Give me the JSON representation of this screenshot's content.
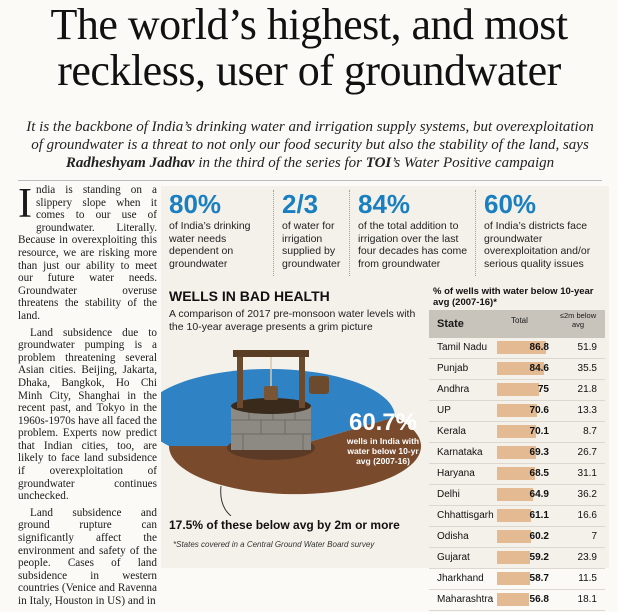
{
  "headline": {
    "line1": "The world’s highest, and most",
    "line2": "reckless, user of groundwater"
  },
  "deck": {
    "part1": "It is the backbone of India’s drinking water and irrigation supply systems, but overexploitation of groundwater is a threat to not only our food security but also the stability of the land, says",
    "author": "Radheshyam Jadhav",
    "part2": "in the third of the series for",
    "paper": "TOI",
    "part3": "’s Water Positive campaign"
  },
  "article": {
    "dropcap": "I",
    "p1": "ndia is standing on a slippery slope when it comes to our use of groundwater. Literally. Because in overexploiting this resource, we are risking more than just our ability to meet our future water needs. Groundwater overuse threatens the stability of the land.",
    "p2": "Land subsidence due to groundwater pumping is a problem threatening several Asian cities. Beijing, Jakarta, Dhaka, Bangkok, Ho Chi Minh City, Shanghai in the recent past, and Tokyo in the 1960s-1970s have all faced the problem. Experts now predict that Indian cities, too, are likely to face land subsidence if overexploitation of groundwater continues unchecked.",
    "p3": "Land subsidence and ground rupture can significantly affect the environment and safety of the people. Cases of land subsidence in western countries (Venice and Ravenna in Italy, Houston in US) and in"
  },
  "stats": [
    {
      "big": "80%",
      "small": "of India’s drinking water needs dependent on groundwater"
    },
    {
      "big": "2/3",
      "small": "of water for irrigation supplied by groundwater"
    },
    {
      "big": "84%",
      "small": "of the total addition to irrigation over the last four decades has come from groundwater"
    },
    {
      "big": "60%",
      "small": "of India’s districts face groundwater overexploitation and/or serious quality issues"
    }
  ],
  "wells": {
    "title": "WELLS IN BAD HEALTH",
    "subtitle": "A comparison of 2017 pre-monsoon water levels with the 10-year average presents a grim picture",
    "pie_pct": "60.7%",
    "pie_text": "wells in India with water below 10-yr avg (2007-16)",
    "below_note": "17.5% of these below avg by 2m or more",
    "footnote": "*States covered in a Central Ground Water Board survey"
  },
  "colors": {
    "accent_blue": "#1a7fc1",
    "pie_brown": "#7a4a2c",
    "pie_blue": "#2f83c5",
    "bar_fill": "#e3ba91"
  },
  "table": {
    "title": "% of wells with water below 10-year avg (2007-16)*",
    "col_state": "State",
    "col_total": "Total",
    "col_below": "≤2m below avg",
    "rows": [
      {
        "state": "Tamil Nadu",
        "total": "86.8",
        "below": "51.9"
      },
      {
        "state": "Punjab",
        "total": "84.6",
        "below": "35.5"
      },
      {
        "state": "Andhra",
        "total": "75",
        "below": "21.8"
      },
      {
        "state": "UP",
        "total": "70.6",
        "below": "13.3"
      },
      {
        "state": "Kerala",
        "total": "70.1",
        "below": "8.7"
      },
      {
        "state": "Karnataka",
        "total": "69.3",
        "below": "26.7"
      },
      {
        "state": "Haryana",
        "total": "68.5",
        "below": "31.1"
      },
      {
        "state": "Delhi",
        "total": "64.9",
        "below": "36.2"
      },
      {
        "state": "Chhattisgarh",
        "total": "61.1",
        "below": "16.6"
      },
      {
        "state": "Odisha",
        "total": "60.2",
        "below": "7"
      },
      {
        "state": "Gujarat",
        "total": "59.2",
        "below": "23.9"
      },
      {
        "state": "Jharkhand",
        "total": "58.7",
        "below": "11.5"
      },
      {
        "state": "Maharashtra",
        "total": "56.8",
        "below": "18.1"
      }
    ]
  }
}
